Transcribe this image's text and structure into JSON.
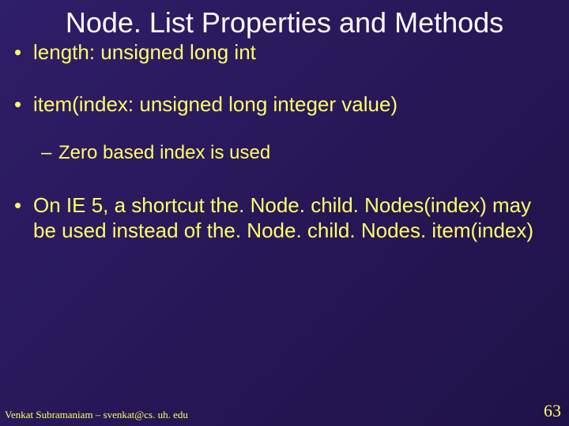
{
  "background_color": "#2a1a5e",
  "title_color": "#ffffff",
  "text_color": "#ffff66",
  "title_fontsize": 36,
  "body_fontsize_l1": 26,
  "body_fontsize_l2": 24,
  "footer_fontsize": 13,
  "pagenum_fontsize": 22,
  "title": "Node. List Properties and Methods",
  "bullets": [
    {
      "level": 1,
      "text": "length: unsigned long int"
    },
    {
      "level": 1,
      "text": "item(index: unsigned long integer value)"
    },
    {
      "level": 2,
      "text": "Zero based index is used"
    },
    {
      "level": 1,
      "text": "On IE 5, a shortcut the. Node. child. Nodes(index) may be used instead of the. Node. child. Nodes. item(index)"
    }
  ],
  "footer": "Venkat Subramaniam – svenkat@cs. uh. edu",
  "page_number": "63"
}
